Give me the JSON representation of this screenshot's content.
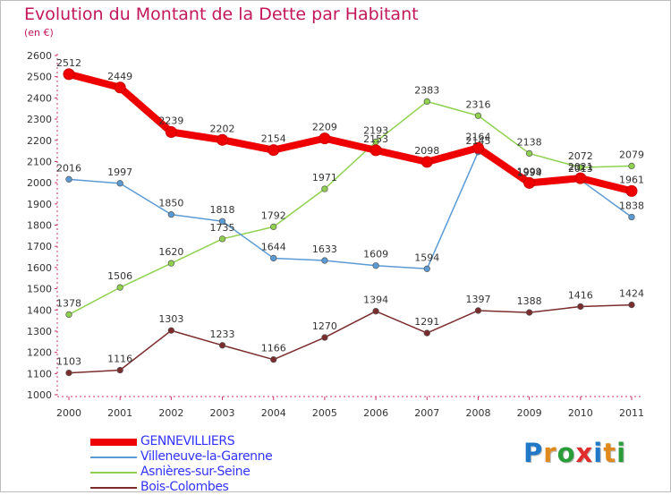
{
  "title": "Evolution du Montant de la Dette par Habitant",
  "unit_label": "(en €)",
  "logo": {
    "text": "Proxiti",
    "letters": [
      "P",
      "r",
      "o",
      "x",
      "i",
      "t",
      "i"
    ],
    "colors": [
      "#1f78c8",
      "#e08a1e",
      "#2a9d3a",
      "#e02c2c",
      "#1f78c8",
      "#e08a1e",
      "#2a9d3a"
    ]
  },
  "chart_data": {
    "type": "line",
    "title": "Evolution du Montant de la Dette par Habitant",
    "ylabel": "(en €)",
    "xlabel": "",
    "x": [
      "2000",
      "2001",
      "2002",
      "2003",
      "2004",
      "2005",
      "2006",
      "2007",
      "2008",
      "2009",
      "2010",
      "2011"
    ],
    "ylim": [
      1000,
      2600
    ],
    "yticks": [
      1000,
      1100,
      1200,
      1300,
      1400,
      1500,
      1600,
      1700,
      1800,
      1900,
      2000,
      2100,
      2200,
      2300,
      2400,
      2500,
      2600
    ],
    "grid": false,
    "legend_position": "bottom-left",
    "series": [
      {
        "name": "GENNEVILLIERS",
        "color": "#ee0000",
        "values": [
          2512,
          2449,
          2239,
          2202,
          2154,
          2209,
          2153,
          2098,
          2164,
          1999,
          2021,
          1961
        ]
      },
      {
        "name": "Villeneuve-la-Garenne",
        "color": "#5b9bd5",
        "values": [
          2016,
          1997,
          1850,
          1818,
          1644,
          1633,
          1609,
          1594,
          2145,
          1994,
          2013,
          1838
        ]
      },
      {
        "name": "Asnières-sur-Seine",
        "color": "#8fd14f",
        "values": [
          1378,
          1506,
          1620,
          1735,
          1792,
          1971,
          2193,
          2383,
          2316,
          2138,
          2072,
          2079
        ]
      },
      {
        "name": "Bois-Colombes",
        "color": "#7b2d2d",
        "values": [
          1103,
          1116,
          1303,
          1233,
          1166,
          1270,
          1394,
          1291,
          1397,
          1388,
          1416,
          1424
        ]
      }
    ]
  }
}
